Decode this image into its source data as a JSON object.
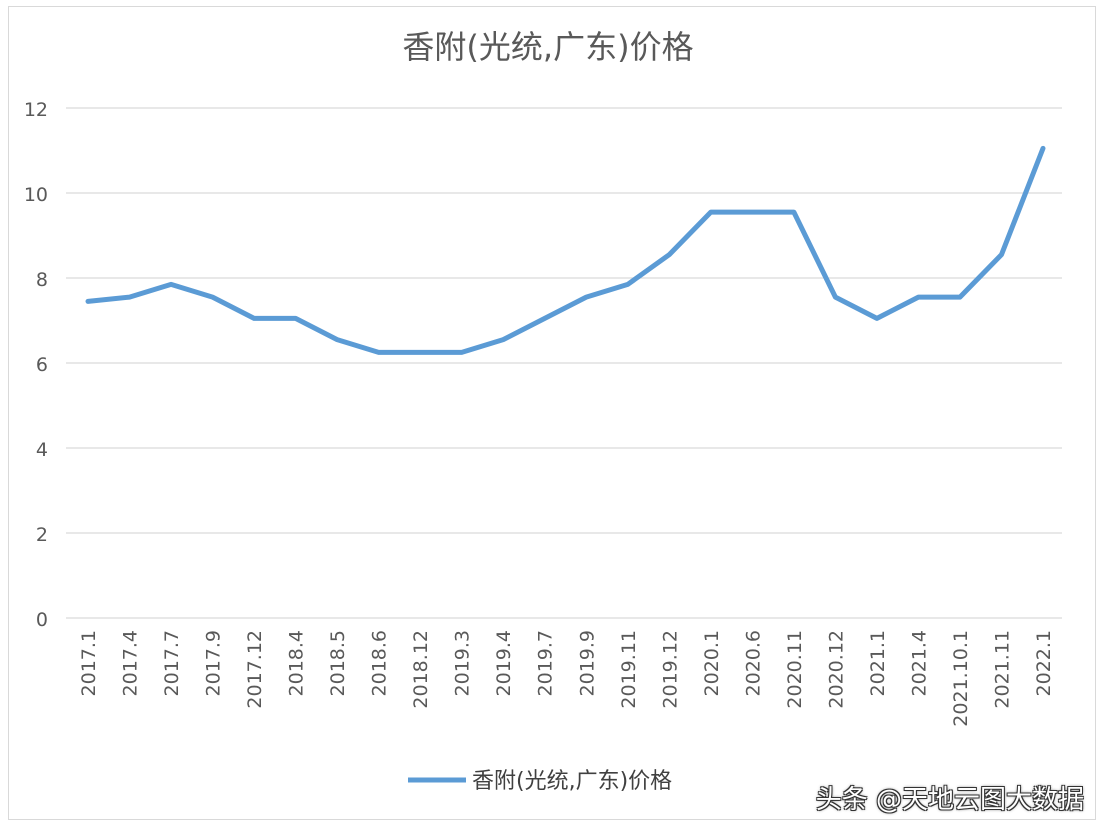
{
  "chart_data": {
    "type": "line",
    "title": "香附(光统,广东)价格",
    "xlabel": "",
    "ylabel": "",
    "ylim": [
      0,
      12
    ],
    "yticks": [
      0,
      2,
      4,
      6,
      8,
      10,
      12
    ],
    "grid": true,
    "legend_position": "bottom",
    "categories": [
      "2017.1",
      "2017.4",
      "2017.7",
      "2017.9",
      "2017.12",
      "2018.4",
      "2018.5",
      "2018.6",
      "2018.12",
      "2019.3",
      "2019.4",
      "2019.7",
      "2019.9",
      "2019.11",
      "2019.12",
      "2020.1",
      "2020.6",
      "2020.11",
      "2020.12",
      "2021.1",
      "2021.4",
      "2021.10.1",
      "2021.11",
      "2022.1"
    ],
    "series": [
      {
        "name": "香附(光统,广东)价格",
        "color": "#5b9bd5",
        "values": [
          7.45,
          7.55,
          7.85,
          7.55,
          7.05,
          7.05,
          6.55,
          6.25,
          6.25,
          6.25,
          6.55,
          7.05,
          7.55,
          7.85,
          8.55,
          9.55,
          9.55,
          9.55,
          7.55,
          7.05,
          7.55,
          7.55,
          8.55,
          11.05
        ]
      }
    ]
  },
  "watermark": "头条 @天地云图大数据"
}
